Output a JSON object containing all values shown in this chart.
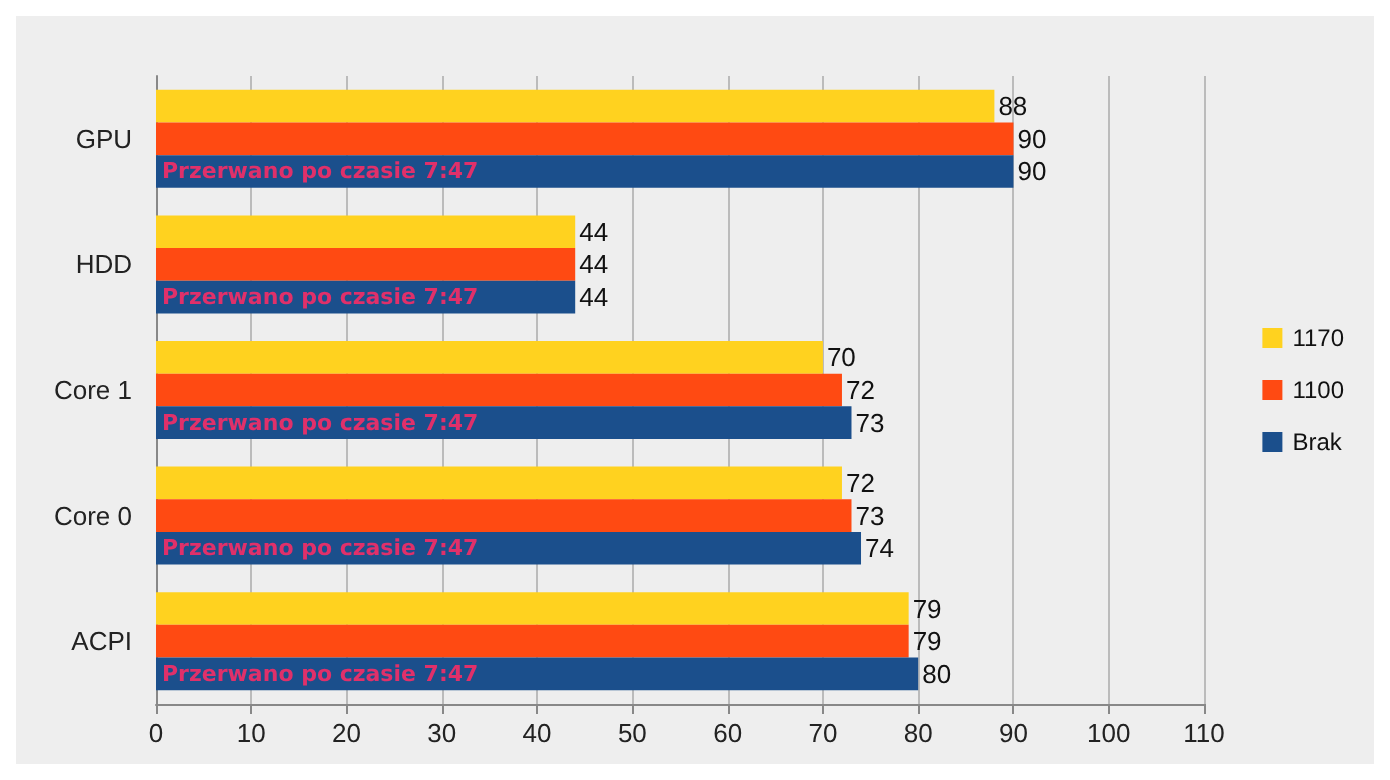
{
  "chart_data": {
    "type": "bar",
    "orientation": "horizontal",
    "categories": [
      "GPU",
      "HDD",
      "Core 1",
      "Core 0",
      "ACPI"
    ],
    "series": [
      {
        "name": "1170",
        "color": "#ffd21f",
        "values": [
          88,
          44,
          70,
          72,
          79
        ]
      },
      {
        "name": "1100",
        "color": "#ff4a12",
        "values": [
          90,
          44,
          72,
          73,
          79
        ]
      },
      {
        "name": "Brak",
        "color": "#1b4f8c",
        "values": [
          90,
          44,
          73,
          74,
          80
        ]
      }
    ],
    "xlim": [
      0,
      110
    ],
    "xticks": [
      0,
      10,
      20,
      30,
      40,
      50,
      60,
      70,
      80,
      90,
      100,
      110
    ],
    "grid": "x",
    "legend": "right",
    "data_labels": true,
    "annotations": [
      "Przerwano po czasie 7:47",
      "Przerwano po czasie 7:47",
      "Przerwano po czasie 7:47",
      "Przerwano po czasie 7:47",
      "Przerwano po czasie 7:47"
    ]
  }
}
